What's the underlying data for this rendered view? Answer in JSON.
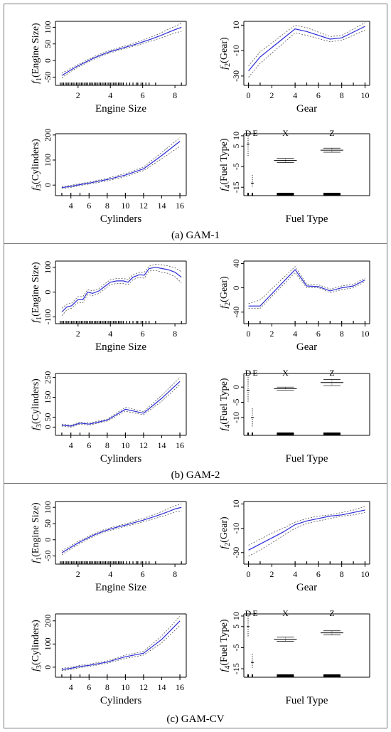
{
  "figure": {
    "panels": [
      {
        "caption": "(a) GAM-1"
      },
      {
        "caption": "(b) GAM-2"
      },
      {
        "caption": "(c) GAM-CV"
      }
    ]
  },
  "chart_data": [
    {
      "type": "line",
      "panel": 0,
      "subplot": "engine",
      "xlabel": "Engine Size",
      "ylabel_var": "f",
      "ylabel_sub": "1",
      "ylabel_arg": "(Engine Size)",
      "xlim": [
        0.6,
        8.7
      ],
      "ylim": [
        -62,
        118
      ],
      "xticks": [
        2,
        4,
        6,
        8
      ],
      "yticks": [
        -50,
        0,
        50,
        100
      ],
      "x": [
        1,
        1.5,
        2,
        2.5,
        3,
        3.5,
        4,
        4.5,
        5,
        5.5,
        6,
        6.5,
        7,
        7.5,
        8,
        8.4
      ],
      "fit": [
        -45,
        -30,
        -16,
        -4,
        8,
        18,
        27,
        34,
        41,
        48,
        56,
        64,
        73,
        83,
        93,
        100
      ],
      "lower": [
        -52,
        -35,
        -20,
        -8,
        4,
        14,
        23,
        31,
        37,
        44,
        51,
        58,
        66,
        74,
        83,
        88
      ],
      "upper": [
        -38,
        -25,
        -12,
        0,
        12,
        22,
        31,
        38,
        45,
        53,
        61,
        70,
        80,
        92,
        103,
        112
      ],
      "rug": [
        0.9,
        1.0,
        1.1,
        1.2,
        1.3,
        1.4,
        1.5,
        1.6,
        1.7,
        1.8,
        1.9,
        2.0,
        2.1,
        2.2,
        2.3,
        2.4,
        2.5,
        2.6,
        2.7,
        2.8,
        2.9,
        3.0,
        3.1,
        3.2,
        3.3,
        3.4,
        3.5,
        3.6,
        3.7,
        3.8,
        3.9,
        4.0,
        4.1,
        4.2,
        4.3,
        4.4,
        4.5,
        4.6,
        4.7,
        4.8,
        5.0,
        5.2,
        5.4,
        5.6,
        5.7,
        5.9,
        6.0,
        6.2,
        6.4,
        6.8,
        8.4
      ]
    },
    {
      "type": "line",
      "panel": 0,
      "subplot": "gear",
      "xlabel": "Gear",
      "ylabel_var": "f",
      "ylabel_sub": "2",
      "ylabel_arg": "(Gear)",
      "xlim": [
        -0.4,
        10.4
      ],
      "ylim": [
        -34,
        13
      ],
      "xticks": [
        0,
        2,
        4,
        6,
        8,
        10
      ],
      "yticks": [
        -30,
        -10,
        10
      ],
      "x": [
        0,
        1,
        4,
        5,
        7,
        8,
        10
      ],
      "fit": [
        -26,
        -15,
        7,
        5,
        -1,
        0,
        9
      ],
      "lower": [
        -31,
        -20,
        4,
        2,
        -3,
        -2,
        6
      ],
      "upper": [
        -22,
        -11,
        10,
        8,
        1,
        2,
        12
      ],
      "rug": [
        0,
        1,
        4,
        5,
        6,
        7,
        8,
        9,
        10
      ]
    },
    {
      "type": "line",
      "panel": 0,
      "subplot": "cylinders",
      "xlabel": "Cylinders",
      "ylabel_var": "f",
      "ylabel_sub": "3",
      "ylabel_arg": "(Cylinders)",
      "xlim": [
        2.3,
        16.7
      ],
      "ylim": [
        -25,
        205
      ],
      "xticks": [
        4,
        6,
        8,
        10,
        12,
        14,
        16
      ],
      "yticks": [
        0,
        100,
        200
      ],
      "x": [
        3,
        4,
        5,
        6,
        8,
        10,
        12,
        14,
        16
      ],
      "fit": [
        -10,
        -5,
        2,
        8,
        22,
        40,
        65,
        118,
        175
      ],
      "lower": [
        -14,
        -9,
        -2,
        4,
        17,
        34,
        58,
        105,
        155
      ],
      "upper": [
        -6,
        -1,
        6,
        12,
        27,
        46,
        72,
        130,
        190
      ],
      "rug": [
        3,
        4,
        5,
        6,
        8,
        10,
        12,
        16
      ]
    },
    {
      "type": "box",
      "panel": 0,
      "subplot": "fuel",
      "xlabel": "Fuel Type",
      "ylabel_var": "f",
      "ylabel_sub": "4",
      "ylabel_arg": "(Fuel Type)",
      "categories": [
        "D",
        "E",
        "X",
        "Z"
      ],
      "ylim": [
        -17,
        11
      ],
      "yticks": [
        -15,
        -5,
        5,
        10
      ],
      "levels": [
        {
          "name": "D",
          "center": 6,
          "low": 0,
          "high": 10
        },
        {
          "name": "E",
          "center": -13,
          "low": -15,
          "high": -9
        },
        {
          "name": "X",
          "center": -2,
          "low": -3,
          "high": -1
        },
        {
          "name": "Z",
          "center": 3,
          "low": 2,
          "high": 4
        }
      ]
    },
    {
      "type": "line",
      "panel": 1,
      "subplot": "engine",
      "xlabel": "Engine Size",
      "ylabel_var": "f",
      "ylabel_sub": "1",
      "ylabel_arg": "(Engine Size)",
      "xlim": [
        0.6,
        8.7
      ],
      "ylim": [
        -110,
        125
      ],
      "xticks": [
        2,
        4,
        6,
        8
      ],
      "yticks": [
        -100,
        0,
        100
      ],
      "x": [
        1,
        1.3,
        1.6,
        2.0,
        2.3,
        2.6,
        2.9,
        3.3,
        3.6,
        4.0,
        4.4,
        4.8,
        5.1,
        5.4,
        5.8,
        6.1,
        6.4,
        6.8,
        7.2,
        7.6,
        8.0,
        8.4
      ],
      "fit": [
        -80,
        -60,
        -55,
        -30,
        -30,
        0,
        -5,
        5,
        20,
        40,
        45,
        45,
        40,
        60,
        70,
        68,
        95,
        100,
        95,
        90,
        80,
        60
      ],
      "lower": [
        -95,
        -72,
        -65,
        -42,
        -42,
        -10,
        -15,
        -5,
        10,
        30,
        35,
        35,
        30,
        50,
        60,
        56,
        85,
        88,
        80,
        75,
        62,
        38
      ],
      "upper": [
        -65,
        -48,
        -45,
        -18,
        -18,
        10,
        5,
        15,
        30,
        50,
        55,
        55,
        50,
        70,
        80,
        80,
        105,
        112,
        110,
        105,
        98,
        82
      ],
      "rug": [
        0.9,
        1.0,
        1.1,
        1.2,
        1.3,
        1.4,
        1.5,
        1.6,
        1.7,
        1.8,
        1.9,
        2.0,
        2.1,
        2.2,
        2.3,
        2.4,
        2.5,
        2.6,
        2.7,
        2.8,
        2.9,
        3.0,
        3.1,
        3.2,
        3.3,
        3.4,
        3.5,
        3.6,
        3.7,
        3.8,
        3.9,
        4.0,
        4.1,
        4.2,
        4.3,
        4.4,
        4.5,
        4.6,
        4.7,
        4.8,
        5.0,
        5.2,
        5.4,
        5.6,
        5.7,
        5.9,
        6.0,
        6.2,
        6.4,
        6.8,
        8.4
      ]
    },
    {
      "type": "line",
      "panel": 1,
      "subplot": "gear",
      "xlabel": "Gear",
      "ylabel_var": "f",
      "ylabel_sub": "2",
      "ylabel_arg": "(Gear)",
      "xlim": [
        -0.4,
        10.4
      ],
      "ylim": [
        -52,
        44
      ],
      "xticks": [
        0,
        2,
        4,
        6,
        8,
        10
      ],
      "yticks": [
        -40,
        0,
        40
      ],
      "x": [
        0,
        1,
        4,
        5,
        6,
        7,
        8,
        9,
        10
      ],
      "fit": [
        -30,
        -30,
        30,
        3,
        2,
        -5,
        0,
        3,
        13
      ],
      "lower": [
        -34,
        -34,
        25,
        0,
        0,
        -8,
        -3,
        0,
        10
      ],
      "upper": [
        -26,
        -20,
        35,
        6,
        5,
        -2,
        3,
        6,
        16
      ],
      "rug": [
        0,
        1,
        4,
        5,
        6,
        7,
        8,
        9,
        10
      ]
    },
    {
      "type": "line",
      "panel": 1,
      "subplot": "cylinders",
      "xlabel": "Cylinders",
      "ylabel_var": "f",
      "ylabel_sub": "3",
      "ylabel_arg": "(Cylinders)",
      "xlim": [
        2.3,
        16.7
      ],
      "ylim": [
        -20,
        270
      ],
      "xticks": [
        4,
        6,
        8,
        10,
        12,
        14,
        16
      ],
      "yticks": [
        0,
        50,
        150,
        250
      ],
      "x": [
        3,
        4,
        5,
        6,
        8,
        10,
        12,
        14,
        16
      ],
      "fit": [
        10,
        5,
        20,
        15,
        35,
        90,
        70,
        145,
        230
      ],
      "lower": [
        5,
        0,
        15,
        10,
        30,
        80,
        62,
        130,
        215
      ],
      "upper": [
        15,
        10,
        25,
        20,
        40,
        100,
        78,
        160,
        250
      ],
      "rug": [
        3,
        4,
        5,
        6,
        8,
        10,
        12,
        16
      ]
    },
    {
      "type": "box",
      "panel": 1,
      "subplot": "fuel",
      "xlabel": "Fuel Type",
      "ylabel_var": "f",
      "ylabel_sub": "4",
      "ylabel_arg": "(Fuel Type)",
      "categories": [
        "D",
        "E",
        "X",
        "Z"
      ],
      "ylim": [
        -14.5,
        4.5
      ],
      "yticks": [
        -10,
        -5,
        0
      ],
      "levels": [
        {
          "name": "D",
          "center": -1,
          "low": -5,
          "high": 4
        },
        {
          "name": "E",
          "center": -10,
          "low": -13,
          "high": -7
        },
        {
          "name": "X",
          "center": -0.5,
          "low": -1,
          "high": 0
        },
        {
          "name": "Z",
          "center": 1.5,
          "low": 0.5,
          "high": 2.5
        }
      ]
    },
    {
      "type": "line",
      "panel": 2,
      "subplot": "engine",
      "xlabel": "Engine Size",
      "ylabel_var": "f",
      "ylabel_sub": "1",
      "ylabel_arg": "(Engine Size)",
      "xlim": [
        0.6,
        8.7
      ],
      "ylim": [
        -62,
        118
      ],
      "xticks": [
        2,
        4,
        6,
        8
      ],
      "yticks": [
        -50,
        0,
        50,
        100
      ],
      "x": [
        1,
        1.5,
        2,
        2.5,
        3,
        3.5,
        4,
        4.5,
        5,
        5.5,
        6,
        6.5,
        7,
        7.5,
        8,
        8.4
      ],
      "fit": [
        -40,
        -25,
        -10,
        3,
        15,
        25,
        33,
        40,
        46,
        53,
        60,
        68,
        76,
        85,
        95,
        100
      ],
      "lower": [
        -46,
        -30,
        -15,
        -1,
        11,
        21,
        29,
        36,
        42,
        48,
        55,
        62,
        69,
        77,
        86,
        89
      ],
      "upper": [
        -34,
        -20,
        -5,
        7,
        19,
        29,
        37,
        44,
        50,
        58,
        65,
        74,
        83,
        94,
        105,
        111
      ],
      "rug": [
        0.9,
        1.0,
        1.1,
        1.2,
        1.3,
        1.4,
        1.5,
        1.6,
        1.7,
        1.8,
        1.9,
        2.0,
        2.1,
        2.2,
        2.3,
        2.4,
        2.5,
        2.6,
        2.7,
        2.8,
        2.9,
        3.0,
        3.1,
        3.2,
        3.3,
        3.4,
        3.5,
        3.6,
        3.7,
        3.8,
        3.9,
        4.0,
        4.1,
        4.2,
        4.3,
        4.4,
        4.5,
        4.6,
        4.7,
        4.8,
        5.0,
        5.2,
        5.4,
        5.6,
        5.7,
        5.9,
        6.0,
        6.2,
        6.4,
        6.8,
        8.4
      ]
    },
    {
      "type": "line",
      "panel": 2,
      "subplot": "gear",
      "xlabel": "Gear",
      "ylabel_var": "f",
      "ylabel_sub": "2",
      "ylabel_arg": "(Gear)",
      "xlim": [
        -0.4,
        10.4
      ],
      "ylim": [
        -36,
        12
      ],
      "xticks": [
        0,
        2,
        4,
        6,
        8,
        10
      ],
      "yticks": [
        -30,
        -10,
        10
      ],
      "x": [
        0,
        1,
        2,
        3,
        4,
        5,
        6,
        7,
        8,
        9,
        10
      ],
      "fit": [
        -28,
        -23,
        -18,
        -13,
        -7,
        -4,
        -2,
        0,
        1,
        3,
        5
      ],
      "lower": [
        -33,
        -28,
        -22,
        -16,
        -10,
        -6,
        -4,
        -2,
        0,
        1,
        3
      ],
      "upper": [
        -24,
        -19,
        -14,
        -10,
        -5,
        -2,
        0,
        1,
        3,
        5,
        8
      ],
      "rug": [
        0,
        1,
        4,
        5,
        6,
        7,
        8,
        9,
        10
      ]
    },
    {
      "type": "line",
      "panel": 2,
      "subplot": "cylinders",
      "xlabel": "Cylinders",
      "ylabel_var": "f",
      "ylabel_sub": "3",
      "ylabel_arg": "(Cylinders)",
      "xlim": [
        2.3,
        16.7
      ],
      "ylim": [
        -25,
        230
      ],
      "xticks": [
        4,
        6,
        8,
        10,
        12,
        14,
        16
      ],
      "yticks": [
        0,
        100,
        200
      ],
      "x": [
        3,
        4,
        5,
        6,
        8,
        10,
        12,
        14,
        16
      ],
      "fit": [
        -10,
        -5,
        3,
        8,
        22,
        45,
        60,
        120,
        200
      ],
      "lower": [
        -15,
        -10,
        -2,
        3,
        17,
        38,
        52,
        105,
        180
      ],
      "upper": [
        -5,
        0,
        8,
        13,
        27,
        52,
        68,
        135,
        220
      ],
      "rug": [
        3,
        4,
        5,
        6,
        8,
        10,
        12,
        16
      ]
    },
    {
      "type": "box",
      "panel": 2,
      "subplot": "fuel",
      "xlabel": "Fuel Type",
      "ylabel_var": "f",
      "ylabel_sub": "4",
      "ylabel_arg": "(Fuel Type)",
      "categories": [
        "D",
        "E",
        "X",
        "Z"
      ],
      "ylim": [
        -17,
        11
      ],
      "yticks": [
        -15,
        -5,
        5,
        10
      ],
      "levels": [
        {
          "name": "D",
          "center": 5,
          "low": 0,
          "high": 10
        },
        {
          "name": "E",
          "center": -12,
          "low": -15,
          "high": -8
        },
        {
          "name": "X",
          "center": -1,
          "low": -2,
          "high": 0
        },
        {
          "name": "Z",
          "center": 2,
          "low": 1,
          "high": 3
        }
      ]
    }
  ]
}
